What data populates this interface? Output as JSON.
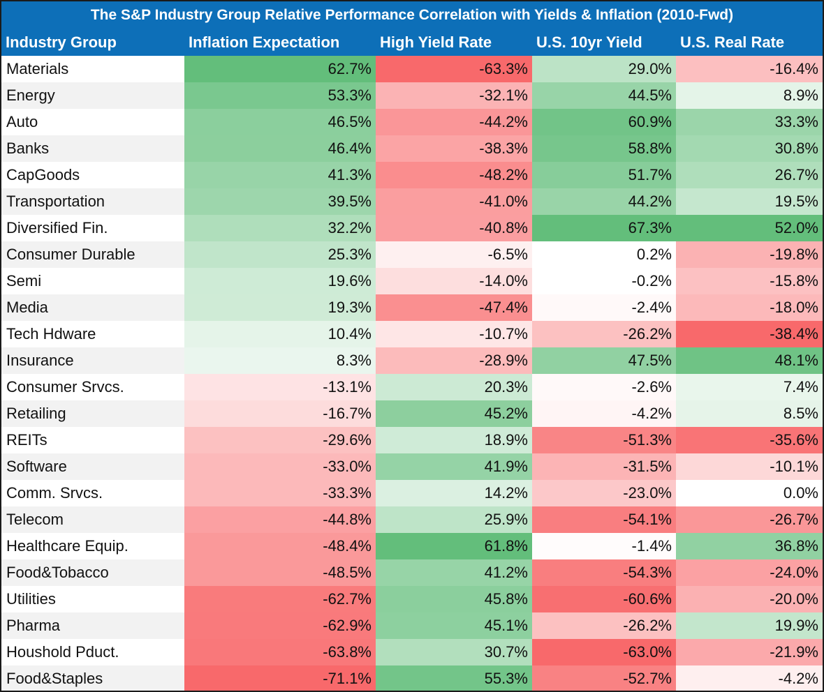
{
  "title": "The S&P Industry Group Relative Performance Correlation with Yields & Inflation (2010-Fwd)",
  "colors": {
    "header_bg": "#0d6fb8",
    "positive": "#63be7b",
    "negative": "#f8696b",
    "neutral": "#ffffff",
    "row_alt": "#f2f2f2"
  },
  "columns": [
    "Industry Group",
    "Inflation Expectation",
    "High Yield Rate",
    "U.S. 10yr Yield",
    "U.S. Real Rate"
  ],
  "rows": [
    {
      "name": "Materials",
      "values": [
        "62.7%",
        "-63.3%",
        "29.0%",
        "-16.4%"
      ]
    },
    {
      "name": "Energy",
      "values": [
        "53.3%",
        "-32.1%",
        "44.5%",
        "8.9%"
      ]
    },
    {
      "name": "Auto",
      "values": [
        "46.5%",
        "-44.2%",
        "60.9%",
        "33.3%"
      ]
    },
    {
      "name": "Banks",
      "values": [
        "46.4%",
        "-38.3%",
        "58.8%",
        "30.8%"
      ]
    },
    {
      "name": "CapGoods",
      "values": [
        "41.3%",
        "-48.2%",
        "51.7%",
        "26.7%"
      ]
    },
    {
      "name": "Transportation",
      "values": [
        "39.5%",
        "-41.0%",
        "44.2%",
        "19.5%"
      ]
    },
    {
      "name": "Diversified Fin.",
      "values": [
        "32.2%",
        "-40.8%",
        "67.3%",
        "52.0%"
      ]
    },
    {
      "name": "Consumer Durable",
      "values": [
        "25.3%",
        "-6.5%",
        "0.2%",
        "-19.8%"
      ]
    },
    {
      "name": "Semi",
      "values": [
        "19.6%",
        "-14.0%",
        "-0.2%",
        "-15.8%"
      ]
    },
    {
      "name": "Media",
      "values": [
        "19.3%",
        "-47.4%",
        "-2.4%",
        "-18.0%"
      ]
    },
    {
      "name": "Tech Hdware",
      "values": [
        "10.4%",
        "-10.7%",
        "-26.2%",
        "-38.4%"
      ]
    },
    {
      "name": "Insurance",
      "values": [
        "8.3%",
        "-28.9%",
        "47.5%",
        "48.1%"
      ]
    },
    {
      "name": "Consumer Srvcs.",
      "values": [
        "-13.1%",
        "20.3%",
        "-2.6%",
        "7.4%"
      ]
    },
    {
      "name": "Retailing",
      "values": [
        "-16.7%",
        "45.2%",
        "-4.2%",
        "8.5%"
      ]
    },
    {
      "name": "REITs",
      "values": [
        "-29.6%",
        "18.9%",
        "-51.3%",
        "-35.6%"
      ]
    },
    {
      "name": "Software",
      "values": [
        "-33.0%",
        "41.9%",
        "-31.5%",
        "-10.1%"
      ]
    },
    {
      "name": "Comm. Srvcs.",
      "values": [
        "-33.3%",
        "14.2%",
        "-23.0%",
        "0.0%"
      ]
    },
    {
      "name": "Telecom",
      "values": [
        "-44.8%",
        "25.9%",
        "-54.1%",
        "-26.7%"
      ]
    },
    {
      "name": "Healthcare Equip.",
      "values": [
        "-48.4%",
        "61.8%",
        "-1.4%",
        "36.8%"
      ]
    },
    {
      "name": "Food&Tobacco",
      "values": [
        "-48.5%",
        "41.2%",
        "-54.3%",
        "-24.0%"
      ]
    },
    {
      "name": "Utilities",
      "values": [
        "-62.7%",
        "45.8%",
        "-60.6%",
        "-20.0%"
      ]
    },
    {
      "name": "Pharma",
      "values": [
        "-62.9%",
        "45.1%",
        "-26.2%",
        "19.9%"
      ]
    },
    {
      "name": "Houshold Pduct.",
      "values": [
        "-63.8%",
        "30.7%",
        "-63.0%",
        "-21.9%"
      ]
    },
    {
      "name": "Food&Staples",
      "values": [
        "-71.1%",
        "55.3%",
        "-52.7%",
        "-4.2%"
      ]
    }
  ],
  "chart_data": {
    "type": "heatmap",
    "title": "The S&P Industry Group Relative Performance Correlation with Yields & Inflation (2010-Fwd)",
    "x": [
      "Inflation Expectation",
      "High Yield Rate",
      "U.S. 10yr Yield",
      "U.S. Real Rate"
    ],
    "y": [
      "Materials",
      "Energy",
      "Auto",
      "Banks",
      "CapGoods",
      "Transportation",
      "Diversified Fin.",
      "Consumer Durable",
      "Semi",
      "Media",
      "Tech Hdware",
      "Insurance",
      "Consumer Srvcs.",
      "Retailing",
      "REITs",
      "Software",
      "Comm. Srvcs.",
      "Telecom",
      "Healthcare Equip.",
      "Food&Tobacco",
      "Utilities",
      "Pharma",
      "Houshold Pduct.",
      "Food&Staples"
    ],
    "values": [
      [
        62.7,
        -63.3,
        29.0,
        -16.4
      ],
      [
        53.3,
        -32.1,
        44.5,
        8.9
      ],
      [
        46.5,
        -44.2,
        60.9,
        33.3
      ],
      [
        46.4,
        -38.3,
        58.8,
        30.8
      ],
      [
        41.3,
        -48.2,
        51.7,
        26.7
      ],
      [
        39.5,
        -41.0,
        44.2,
        19.5
      ],
      [
        32.2,
        -40.8,
        67.3,
        52.0
      ],
      [
        25.3,
        -6.5,
        0.2,
        -19.8
      ],
      [
        19.6,
        -14.0,
        -0.2,
        -15.8
      ],
      [
        19.3,
        -47.4,
        -2.4,
        -18.0
      ],
      [
        10.4,
        -10.7,
        -26.2,
        -38.4
      ],
      [
        8.3,
        -28.9,
        47.5,
        48.1
      ],
      [
        -13.1,
        20.3,
        -2.6,
        7.4
      ],
      [
        -16.7,
        45.2,
        -4.2,
        8.5
      ],
      [
        -29.6,
        18.9,
        -51.3,
        -35.6
      ],
      [
        -33.0,
        41.9,
        -31.5,
        -10.1
      ],
      [
        -33.3,
        14.2,
        -23.0,
        0.0
      ],
      [
        -44.8,
        25.9,
        -54.1,
        -26.7
      ],
      [
        -48.4,
        61.8,
        -1.4,
        36.8
      ],
      [
        -48.5,
        41.2,
        -54.3,
        -24.0
      ],
      [
        -62.7,
        45.8,
        -60.6,
        -20.0
      ],
      [
        -62.9,
        45.1,
        -26.2,
        19.9
      ],
      [
        -63.8,
        30.7,
        -63.0,
        -21.9
      ],
      [
        -71.1,
        55.3,
        -52.7,
        -4.2
      ]
    ],
    "unit": "%"
  }
}
